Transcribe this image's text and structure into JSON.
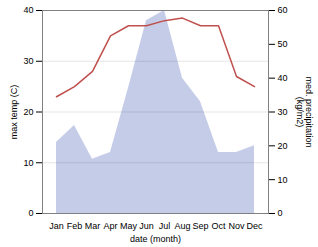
{
  "chart_data": {
    "type": "line",
    "categories": [
      "Jan",
      "Feb",
      "Mar",
      "Apr",
      "May",
      "Jun",
      "Jul",
      "Aug",
      "Sep",
      "Oct",
      "Nov",
      "Dec"
    ],
    "series": [
      {
        "type": "area",
        "axis": "y2",
        "color": "#c5cce8",
        "values": [
          21,
          26,
          16,
          18,
          37,
          57,
          60,
          40,
          33,
          18,
          18,
          20
        ]
      },
      {
        "type": "line",
        "color": "#c0504d",
        "values": [
          23,
          25,
          28,
          35,
          37,
          37,
          38,
          38.5,
          37,
          37,
          27,
          25
        ]
      }
    ],
    "xlabel": "date (month)",
    "ylabel": "max temp (C)",
    "y2label": "med. precipitation\n(kg/m2)",
    "ylim": [
      0,
      40
    ],
    "yticks": [
      0,
      10,
      20,
      30,
      40
    ],
    "y2lim": [
      0,
      60
    ],
    "y2ticks": [
      0,
      10,
      20,
      30,
      40,
      50,
      60
    ],
    "grid": true
  }
}
